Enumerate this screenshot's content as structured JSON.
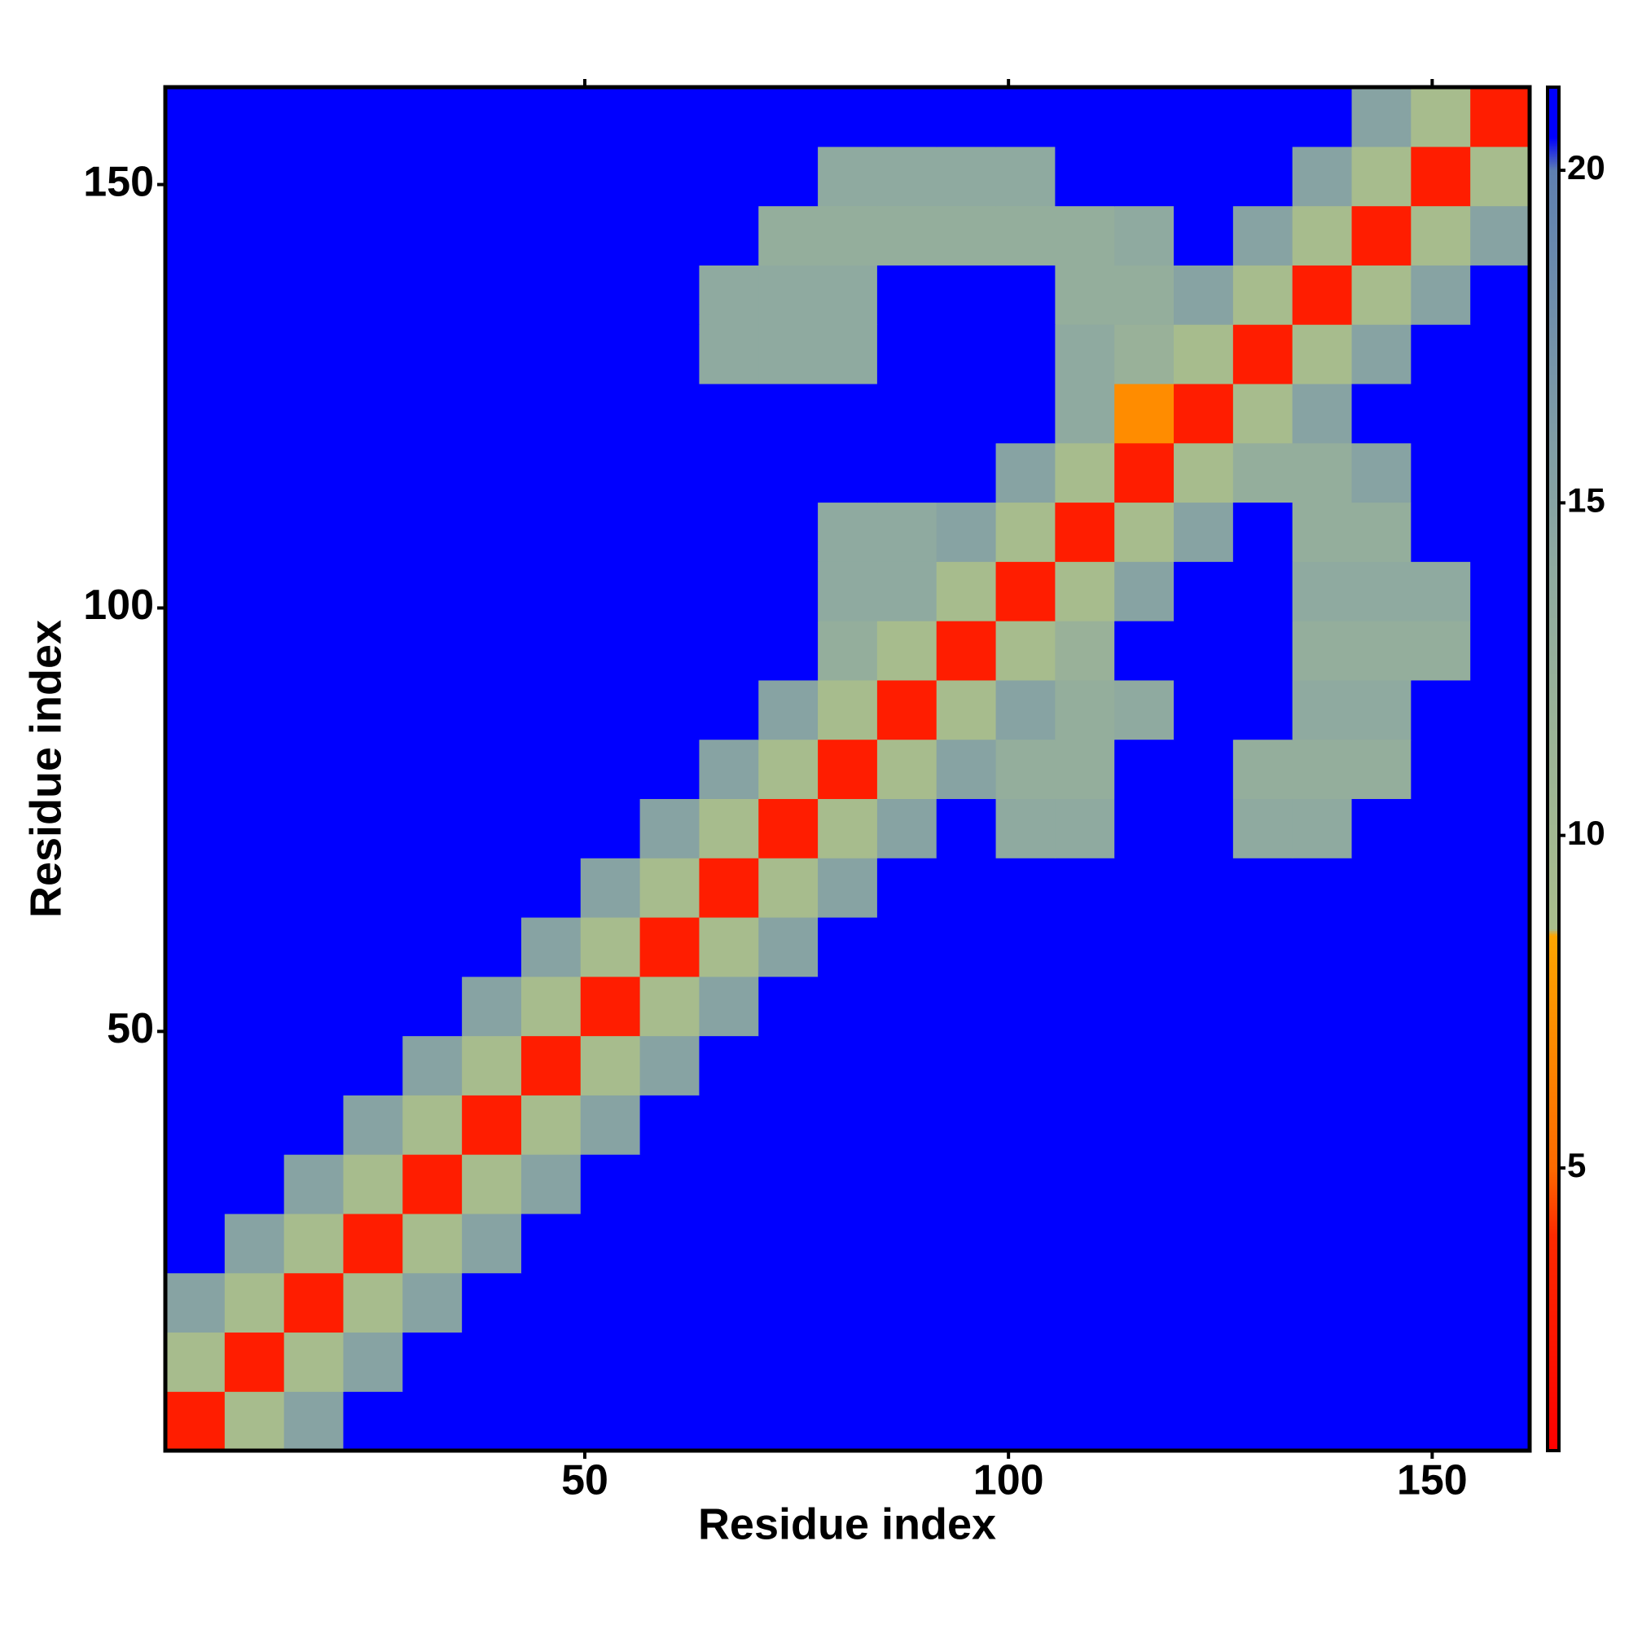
{
  "chart_data": {
    "type": "heatmap",
    "xlabel": "Residue index",
    "ylabel": "Residue index",
    "x": [
      4,
      11,
      18,
      25,
      32,
      39,
      46,
      53,
      60,
      67,
      74,
      81,
      88,
      95,
      102,
      109,
      116,
      123,
      130,
      137,
      144,
      151,
      158
    ],
    "y": [
      4,
      11,
      18,
      25,
      32,
      39,
      46,
      53,
      60,
      67,
      74,
      81,
      88,
      95,
      102,
      109,
      116,
      123,
      130,
      137,
      144,
      151,
      158
    ],
    "cell": 7,
    "z": [
      [
        3,
        9,
        15,
        21,
        21,
        21,
        21,
        21,
        21,
        21,
        21,
        21,
        21,
        21,
        21,
        21,
        21,
        21,
        21,
        21,
        21,
        21,
        21
      ],
      [
        9,
        3,
        9,
        15,
        21,
        21,
        21,
        21,
        21,
        21,
        21,
        21,
        21,
        21,
        21,
        21,
        21,
        21,
        21,
        21,
        21,
        21,
        21
      ],
      [
        15,
        9,
        3,
        9,
        15,
        21,
        21,
        21,
        21,
        21,
        21,
        21,
        21,
        21,
        21,
        21,
        21,
        21,
        21,
        21,
        21,
        21,
        21
      ],
      [
        21,
        15,
        9,
        3,
        9,
        15,
        21,
        21,
        21,
        21,
        21,
        21,
        21,
        21,
        21,
        21,
        21,
        21,
        21,
        21,
        21,
        21,
        21
      ],
      [
        21,
        21,
        15,
        9,
        3,
        9,
        15,
        21,
        21,
        21,
        21,
        21,
        21,
        21,
        21,
        21,
        21,
        21,
        21,
        21,
        21,
        21,
        21
      ],
      [
        21,
        21,
        21,
        15,
        9,
        3,
        9,
        15,
        21,
        21,
        21,
        21,
        21,
        21,
        21,
        21,
        21,
        21,
        21,
        21,
        21,
        21,
        21
      ],
      [
        21,
        21,
        21,
        21,
        15,
        9,
        3,
        9,
        15,
        21,
        21,
        21,
        21,
        21,
        21,
        21,
        21,
        21,
        21,
        21,
        21,
        21,
        21
      ],
      [
        21,
        21,
        21,
        21,
        21,
        15,
        9,
        3,
        9,
        15,
        21,
        21,
        21,
        21,
        21,
        21,
        21,
        21,
        21,
        21,
        21,
        21,
        21
      ],
      [
        21,
        21,
        21,
        21,
        21,
        21,
        15,
        9,
        3,
        9,
        15,
        21,
        21,
        21,
        21,
        21,
        21,
        21,
        21,
        21,
        21,
        21,
        21
      ],
      [
        21,
        21,
        21,
        21,
        21,
        21,
        21,
        15,
        9,
        3,
        9,
        15,
        21,
        21,
        21,
        21,
        21,
        21,
        21,
        21,
        21,
        21,
        21
      ],
      [
        21,
        21,
        21,
        21,
        21,
        21,
        21,
        21,
        15,
        9,
        3,
        9,
        15,
        21,
        14,
        14,
        21,
        21,
        14,
        14,
        21,
        21,
        21
      ],
      [
        21,
        21,
        21,
        21,
        21,
        21,
        21,
        21,
        21,
        15,
        9,
        3,
        9,
        15,
        13,
        13,
        21,
        21,
        13,
        13,
        13,
        21,
        21
      ],
      [
        21,
        21,
        21,
        21,
        21,
        21,
        21,
        21,
        21,
        21,
        15,
        9,
        3,
        9,
        15,
        13,
        14,
        21,
        21,
        14,
        14,
        21,
        21
      ],
      [
        21,
        21,
        21,
        21,
        21,
        21,
        21,
        21,
        21,
        21,
        21,
        13,
        9,
        3,
        9,
        12,
        21,
        21,
        21,
        13,
        13,
        13,
        21
      ],
      [
        21,
        21,
        21,
        21,
        21,
        21,
        21,
        21,
        21,
        21,
        21,
        14,
        14,
        9,
        3,
        9,
        15,
        21,
        21,
        14,
        14,
        14,
        21
      ],
      [
        21,
        21,
        21,
        21,
        21,
        21,
        21,
        21,
        21,
        21,
        21,
        14,
        14,
        15,
        9,
        3,
        9,
        15,
        21,
        13,
        13,
        21,
        21
      ],
      [
        21,
        21,
        21,
        21,
        21,
        21,
        21,
        21,
        21,
        21,
        21,
        21,
        21,
        21,
        15,
        9,
        3,
        9,
        13,
        13,
        15,
        21,
        21
      ],
      [
        21,
        21,
        21,
        21,
        21,
        21,
        21,
        21,
        21,
        21,
        21,
        21,
        21,
        21,
        21,
        14,
        7,
        3,
        9,
        15,
        21,
        21,
        21
      ],
      [
        21,
        21,
        21,
        21,
        21,
        21,
        21,
        21,
        21,
        14,
        14,
        14,
        21,
        21,
        21,
        14,
        12,
        9,
        3,
        9,
        15,
        21,
        21
      ],
      [
        21,
        21,
        21,
        21,
        21,
        21,
        21,
        21,
        21,
        14,
        14,
        14,
        21,
        21,
        21,
        13,
        13,
        15,
        9,
        3,
        9,
        15,
        21
      ],
      [
        21,
        21,
        21,
        21,
        21,
        21,
        21,
        21,
        21,
        21,
        13,
        13,
        13,
        13,
        13,
        13,
        14,
        21,
        15,
        9,
        3,
        9,
        15
      ],
      [
        21,
        21,
        21,
        21,
        21,
        21,
        21,
        21,
        21,
        21,
        21,
        14,
        14,
        14,
        14,
        21,
        21,
        21,
        21,
        15,
        9,
        3,
        9
      ],
      [
        21,
        21,
        21,
        21,
        21,
        21,
        21,
        21,
        21,
        21,
        21,
        21,
        21,
        21,
        21,
        21,
        21,
        21,
        21,
        21,
        15,
        9,
        3
      ]
    ],
    "xlim": [
      0.5,
      161.5
    ],
    "ylim": [
      0.5,
      161.5
    ],
    "xticks": [
      50,
      100,
      150
    ],
    "yticks": [
      50,
      100,
      150
    ],
    "zlim": [
      0.75,
      21.25
    ],
    "zticks": [
      5,
      10,
      15,
      20
    ],
    "colorscale": [
      [
        0.75,
        "#ff0000"
      ],
      [
        4,
        "#ff2a00"
      ],
      [
        5,
        "#ff6a00"
      ],
      [
        8.5,
        "#ffa500"
      ],
      [
        8.6,
        "#a9bd8c"
      ],
      [
        14,
        "#8faaa0"
      ],
      [
        20,
        "#5f80b0"
      ],
      [
        20.5,
        "#0000ff"
      ],
      [
        21.25,
        "#0000ff"
      ]
    ]
  }
}
